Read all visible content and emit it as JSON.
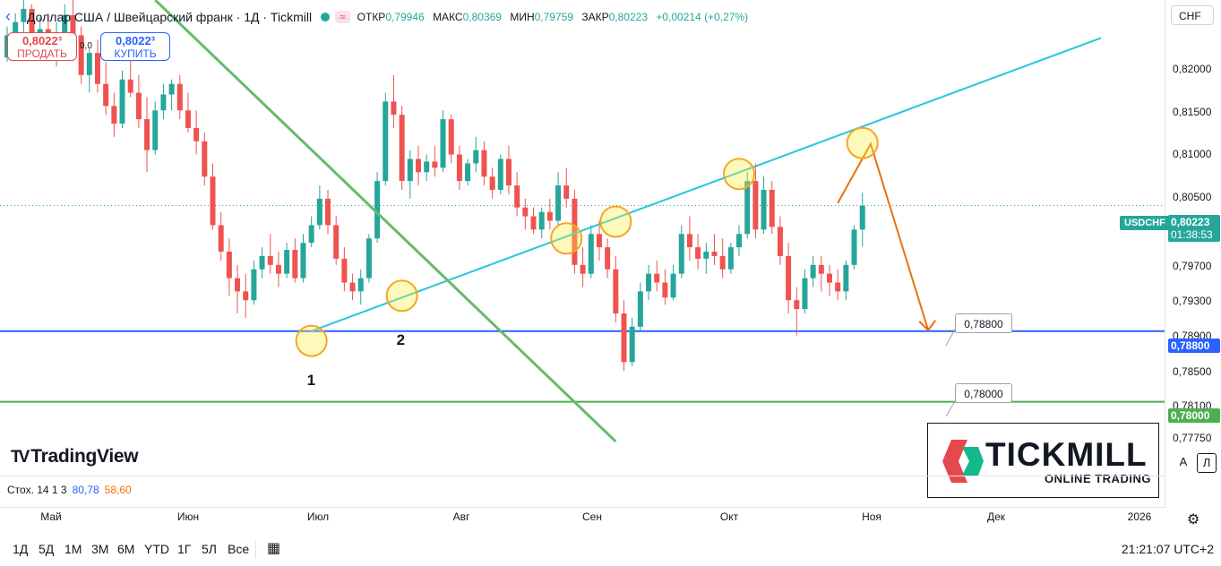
{
  "header": {
    "title": "Доллар США / Швейцарский франк · 1Д · Tickmill",
    "status_color": "#26a69a",
    "wave_symbol": "≈",
    "ohlc": [
      {
        "label": "ОТКР",
        "value": "0,79946"
      },
      {
        "label": "МАКС",
        "value": "0,80369"
      },
      {
        "label": "МИН",
        "value": "0,79759"
      },
      {
        "label": "ЗАКР",
        "value": "0,80223"
      },
      {
        "label": "",
        "value": "+0,00214 (+0,27%)"
      }
    ]
  },
  "trade": {
    "sell_price": "0,8022³",
    "sell_label": "ПРОДАТЬ",
    "buy_price": "0,8022³",
    "buy_label": "КУПИТЬ",
    "spread": "0,0"
  },
  "branding": {
    "tradingview": "TradingView",
    "tickmill_name": "TICKMILL",
    "tickmill_slogan": "ONLINE TRADING"
  },
  "indicator": {
    "name": "Стох. 14 1 3",
    "k_value": "80,78",
    "d_value": "58,60",
    "k_color": "#2962ff",
    "d_color": "#ff6d00"
  },
  "price_axis": {
    "currency": "CHF",
    "symbol": "USDCHF",
    "current_price": "0,80223",
    "countdown": "01:38:53",
    "labels": [
      "0,82000",
      "0,81500",
      "0,81000",
      "0,80500",
      "0,79700",
      "0,79300",
      "0,78900",
      "0,78500",
      "0,78100",
      "0,77750"
    ],
    "tag_788": "0,78800",
    "tag_780": "0,78000",
    "auto_btn": "A",
    "log_btn": "Л"
  },
  "time_axis": [
    "Май",
    "Июн",
    "Июл",
    "Авг",
    "Сен",
    "Окт",
    "Ноя",
    "Дек",
    "2026"
  ],
  "timeframes": [
    "1Д",
    "5Д",
    "1М",
    "3М",
    "6М",
    "YTD",
    "1Г",
    "5Л",
    "Все"
  ],
  "clock": "21:21:07 UTC+2",
  "annotations": {
    "point1": "1",
    "point2": "2",
    "callout_788": "0,78800",
    "callout_780": "0,78000"
  },
  "chart_data": {
    "type": "candlestick",
    "symbol": "USDCHF",
    "timeframe": "1Д",
    "y_range": [
      0.7755,
      0.8255
    ],
    "x_range": [
      "Май",
      "2026"
    ],
    "up_color": "#26a69a",
    "down_color": "#ef5350",
    "candles_ohlc": [
      [
        0.819,
        0.8225,
        0.8185,
        0.8215
      ],
      [
        0.8215,
        0.824,
        0.82,
        0.823
      ],
      [
        0.823,
        0.8255,
        0.8215,
        0.8245
      ],
      [
        0.8245,
        0.825,
        0.8205,
        0.8212
      ],
      [
        0.8212,
        0.8235,
        0.819,
        0.8222
      ],
      [
        0.8222,
        0.824,
        0.8195,
        0.8205
      ],
      [
        0.8205,
        0.823,
        0.818,
        0.8218
      ],
      [
        0.8218,
        0.825,
        0.8205,
        0.8238
      ],
      [
        0.8238,
        0.8255,
        0.821,
        0.8215
      ],
      [
        0.8215,
        0.8225,
        0.816,
        0.817
      ],
      [
        0.817,
        0.82,
        0.815,
        0.8195
      ],
      [
        0.8195,
        0.821,
        0.815,
        0.816
      ],
      [
        0.816,
        0.8185,
        0.8125,
        0.8135
      ],
      [
        0.8135,
        0.815,
        0.81,
        0.8115
      ],
      [
        0.8115,
        0.8175,
        0.811,
        0.8165
      ],
      [
        0.8165,
        0.819,
        0.8145,
        0.815
      ],
      [
        0.815,
        0.817,
        0.811,
        0.812
      ],
      [
        0.812,
        0.8145,
        0.806,
        0.8085
      ],
      [
        0.8085,
        0.814,
        0.808,
        0.813
      ],
      [
        0.813,
        0.816,
        0.812,
        0.8148
      ],
      [
        0.8148,
        0.8165,
        0.813,
        0.816
      ],
      [
        0.816,
        0.817,
        0.812,
        0.813
      ],
      [
        0.813,
        0.815,
        0.8105,
        0.811
      ],
      [
        0.811,
        0.813,
        0.808,
        0.8095
      ],
      [
        0.8095,
        0.8105,
        0.8045,
        0.8055
      ],
      [
        0.8055,
        0.807,
        0.7995,
        0.8
      ],
      [
        0.8,
        0.8015,
        0.796,
        0.797
      ],
      [
        0.797,
        0.7985,
        0.792,
        0.794
      ],
      [
        0.794,
        0.7955,
        0.79,
        0.7925
      ],
      [
        0.7925,
        0.7945,
        0.7895,
        0.7915
      ],
      [
        0.7915,
        0.796,
        0.791,
        0.795
      ],
      [
        0.795,
        0.7975,
        0.794,
        0.7965
      ],
      [
        0.7965,
        0.799,
        0.7945,
        0.7955
      ],
      [
        0.7955,
        0.797,
        0.793,
        0.7945
      ],
      [
        0.7945,
        0.798,
        0.794,
        0.7972
      ],
      [
        0.7972,
        0.7985,
        0.7935,
        0.794
      ],
      [
        0.794,
        0.799,
        0.7935,
        0.798
      ],
      [
        0.798,
        0.801,
        0.7975,
        0.8
      ],
      [
        0.8,
        0.8045,
        0.7995,
        0.803
      ],
      [
        0.803,
        0.804,
        0.799,
        0.8
      ],
      [
        0.8,
        0.801,
        0.7955,
        0.7962
      ],
      [
        0.7962,
        0.7975,
        0.7925,
        0.7935
      ],
      [
        0.7935,
        0.7945,
        0.7915,
        0.7925
      ],
      [
        0.7925,
        0.795,
        0.791,
        0.794
      ],
      [
        0.794,
        0.799,
        0.7935,
        0.7985
      ],
      [
        0.7985,
        0.806,
        0.798,
        0.805
      ],
      [
        0.805,
        0.815,
        0.8045,
        0.814
      ],
      [
        0.814,
        0.817,
        0.811,
        0.8125
      ],
      [
        0.8125,
        0.8135,
        0.804,
        0.805
      ],
      [
        0.805,
        0.8085,
        0.803,
        0.8075
      ],
      [
        0.8075,
        0.809,
        0.8045,
        0.806
      ],
      [
        0.806,
        0.808,
        0.805,
        0.8072
      ],
      [
        0.8072,
        0.809,
        0.8055,
        0.8065
      ],
      [
        0.8065,
        0.813,
        0.806,
        0.812
      ],
      [
        0.812,
        0.8125,
        0.807,
        0.808
      ],
      [
        0.808,
        0.809,
        0.804,
        0.805
      ],
      [
        0.805,
        0.8075,
        0.8045,
        0.807
      ],
      [
        0.807,
        0.81,
        0.806,
        0.8085
      ],
      [
        0.8085,
        0.8095,
        0.8045,
        0.8055
      ],
      [
        0.8055,
        0.8065,
        0.803,
        0.804
      ],
      [
        0.804,
        0.808,
        0.8035,
        0.8075
      ],
      [
        0.8075,
        0.809,
        0.8035,
        0.8045
      ],
      [
        0.8045,
        0.806,
        0.801,
        0.802
      ],
      [
        0.802,
        0.803,
        0.7995,
        0.801
      ],
      [
        0.801,
        0.802,
        0.799,
        0.7995
      ],
      [
        0.7995,
        0.802,
        0.7985,
        0.8015
      ],
      [
        0.8015,
        0.803,
        0.7995,
        0.8005
      ],
      [
        0.8005,
        0.806,
        0.8,
        0.8045
      ],
      [
        0.8045,
        0.8065,
        0.802,
        0.803
      ],
      [
        0.803,
        0.804,
        0.7945,
        0.7955
      ],
      [
        0.7955,
        0.7975,
        0.793,
        0.7945
      ],
      [
        0.7945,
        0.8,
        0.794,
        0.799
      ],
      [
        0.799,
        0.8005,
        0.796,
        0.7975
      ],
      [
        0.7975,
        0.7985,
        0.794,
        0.795
      ],
      [
        0.795,
        0.7965,
        0.789,
        0.79
      ],
      [
        0.79,
        0.7915,
        0.7835,
        0.7845
      ],
      [
        0.7845,
        0.7895,
        0.784,
        0.7885
      ],
      [
        0.7885,
        0.7935,
        0.788,
        0.7925
      ],
      [
        0.7925,
        0.7955,
        0.7915,
        0.7945
      ],
      [
        0.7945,
        0.796,
        0.7925,
        0.7935
      ],
      [
        0.7935,
        0.795,
        0.791,
        0.7918
      ],
      [
        0.7918,
        0.7955,
        0.7915,
        0.7945
      ],
      [
        0.7945,
        0.8,
        0.794,
        0.799
      ],
      [
        0.799,
        0.801,
        0.796,
        0.7975
      ],
      [
        0.7975,
        0.799,
        0.795,
        0.7962
      ],
      [
        0.7962,
        0.798,
        0.7945,
        0.797
      ],
      [
        0.797,
        0.799,
        0.7955,
        0.7965
      ],
      [
        0.7965,
        0.7985,
        0.794,
        0.795
      ],
      [
        0.795,
        0.798,
        0.7945,
        0.7975
      ],
      [
        0.7975,
        0.8,
        0.7965,
        0.799
      ],
      [
        0.799,
        0.806,
        0.7985,
        0.805
      ],
      [
        0.805,
        0.807,
        0.7985,
        0.7995
      ],
      [
        0.7995,
        0.8055,
        0.799,
        0.804
      ],
      [
        0.804,
        0.805,
        0.799,
        0.7998
      ],
      [
        0.7998,
        0.801,
        0.7955,
        0.7965
      ],
      [
        0.7965,
        0.798,
        0.79,
        0.7915
      ],
      [
        0.7915,
        0.793,
        0.7875,
        0.7905
      ],
      [
        0.7905,
        0.795,
        0.79,
        0.794
      ],
      [
        0.794,
        0.7965,
        0.793,
        0.7955
      ],
      [
        0.7955,
        0.7965,
        0.7925,
        0.7945
      ],
      [
        0.7945,
        0.7955,
        0.792,
        0.7935
      ],
      [
        0.7935,
        0.795,
        0.7915,
        0.7925
      ],
      [
        0.7925,
        0.796,
        0.7915,
        0.7955
      ],
      [
        0.7955,
        0.8,
        0.795,
        0.7995
      ],
      [
        0.7995,
        0.8037,
        0.7976,
        0.8022
      ]
    ],
    "current_price": 0.80223,
    "horizontal_levels": [
      {
        "price": 0.788,
        "color": "#2962ff"
      },
      {
        "price": 0.78,
        "color": "#4caf50"
      }
    ],
    "trendlines": [
      {
        "color": "#26c6da",
        "from_candle": 37,
        "from_price": 0.788,
        "to_candle": 133,
        "to_price": 0.8212
      },
      {
        "color": "#66bb6a",
        "from_candle": 18,
        "from_price": 0.8255,
        "to_candle": 74,
        "to_price": 0.7755
      }
    ],
    "projection": {
      "color": "#e8710a",
      "points": [
        [
          101,
          0.8025
        ],
        [
          105,
          0.8092
        ],
        [
          112,
          0.7881
        ]
      ]
    },
    "circles": [
      {
        "candle": 37,
        "price": 0.7869
      },
      {
        "candle": 48,
        "price": 0.792
      },
      {
        "candle": 68,
        "price": 0.7985
      },
      {
        "candle": 74,
        "price": 0.8004
      },
      {
        "candle": 89,
        "price": 0.8058
      },
      {
        "candle": 104,
        "price": 0.8093
      }
    ]
  }
}
